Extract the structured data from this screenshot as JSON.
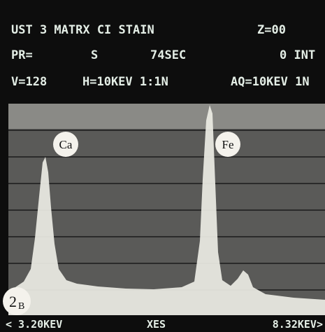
{
  "header": {
    "line1": {
      "left": "UST 3 MATRX CI STAIN",
      "right": "Z=00"
    },
    "line2": {
      "a": "PR=",
      "b": "S",
      "c": "74SEC",
      "d": "0 INT"
    },
    "line3": {
      "a": "V=128",
      "b": "H=10KEV 1:1N",
      "c": "AQ=10KEV 1N"
    }
  },
  "peaks": {
    "ca": "Ca",
    "fe": "Fe"
  },
  "marker": {
    "number": "2",
    "sub": "B"
  },
  "footer": {
    "left": "< 3.20KEV",
    "center": "XES",
    "right": "8.32KEV>"
  }
}
